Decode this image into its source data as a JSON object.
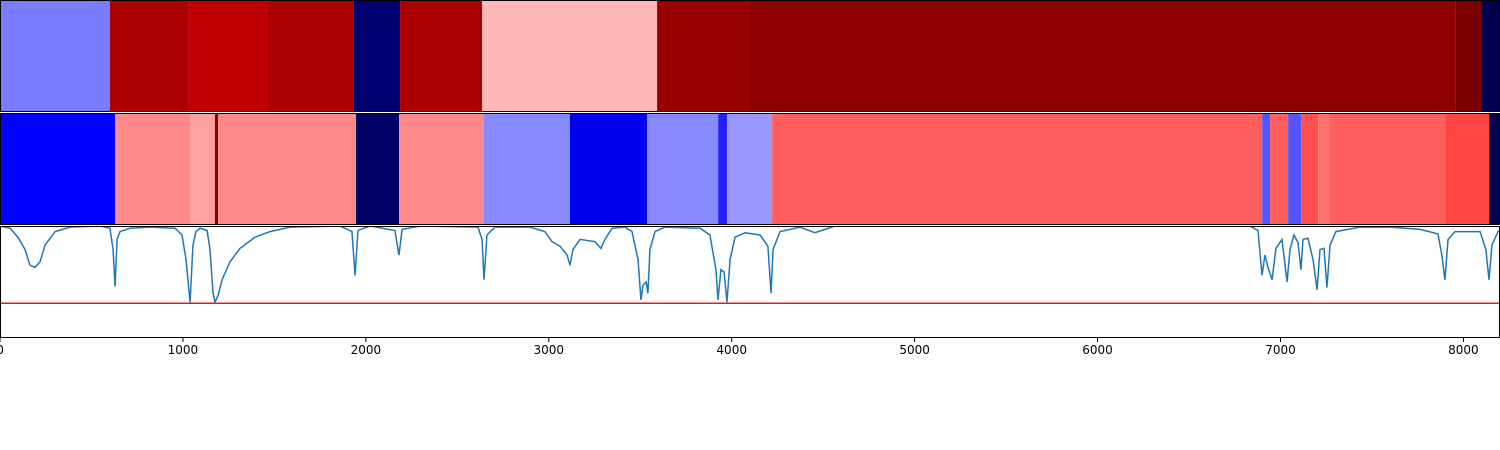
{
  "chart_data": [
    {
      "type": "segments",
      "xlim": [
        0,
        8200
      ],
      "x": [
        0,
        601,
        1028,
        1465,
        1935,
        2187,
        2635,
        3592,
        4100,
        7955,
        8097,
        8200
      ],
      "colors": [
        "#7b7bff",
        "#aa0000",
        "#c00000",
        "#aa0000",
        "#000070",
        "#aa0000",
        "#ffb8b8",
        "#990000",
        "#8e0000",
        "#7a0000",
        "#000050"
      ]
    },
    {
      "type": "segments",
      "xlim": [
        0,
        8200
      ],
      "x": [
        0,
        629,
        1039,
        1175,
        1192,
        1946,
        2182,
        2646,
        3116,
        3537,
        3926,
        3975,
        4221,
        6900,
        6943,
        7042,
        7113,
        7206,
        7266,
        7900,
        8141,
        8200
      ],
      "colors": [
        "#0000ff",
        "#ff8888",
        "#ffa0a0",
        "#880000",
        "#ff8888",
        "#000066",
        "#ff8888",
        "#8888ff",
        "#0000ee",
        "#8888ff",
        "#2222ff",
        "#9999ff",
        "#ff5e5e",
        "#5555ff",
        "#ff5e5e",
        "#5555ff",
        "#ff5050",
        "#ff7070",
        "#ff5e5e",
        "#ff4444",
        "#000050"
      ]
    },
    {
      "type": "line",
      "xlim": [
        0,
        8200
      ],
      "ylim": [
        0,
        1
      ],
      "xticks": [
        0,
        1000,
        2000,
        3000,
        4000,
        5000,
        6000,
        7000,
        8000
      ],
      "color": "#1f77b4",
      "threshold": 0.31,
      "threshold_color": "#e41a1c",
      "x": [
        0,
        55,
        98,
        137,
        164,
        191,
        219,
        246,
        301,
        383,
        547,
        601,
        618,
        629,
        640,
        656,
        711,
        820,
        957,
        995,
        1017,
        1039,
        1055,
        1071,
        1093,
        1132,
        1148,
        1164,
        1175,
        1192,
        1214,
        1257,
        1312,
        1394,
        1476,
        1585,
        1859,
        1924,
        1941,
        1957,
        2023,
        2159,
        2181,
        2198,
        2296,
        2613,
        2635,
        2646,
        2662,
        2706,
        2897,
        2979,
        3018,
        3061,
        3100,
        3116,
        3132,
        3171,
        3253,
        3285,
        3307,
        3346,
        3417,
        3455,
        3488,
        3504,
        3515,
        3532,
        3542,
        3553,
        3581,
        3635,
        3827,
        3881,
        3914,
        3925,
        3941,
        3958,
        3974,
        3991,
        4018,
        4073,
        4155,
        4198,
        4215,
        4226,
        4264,
        4373,
        4455,
        4510,
        4565,
        6833,
        6877,
        6899,
        6915,
        6932,
        6954,
        6975,
        7008,
        7036,
        7052,
        7074,
        7096,
        7112,
        7123,
        7150,
        7178,
        7200,
        7216,
        7238,
        7254,
        7271,
        7303,
        7435,
        7599,
        7763,
        7861,
        7883,
        7899,
        7916,
        7954,
        8091,
        8123,
        8140,
        8156,
        8189,
        8200
      ],
      "values": [
        1,
        0.98,
        0.9,
        0.79,
        0.65,
        0.63,
        0.68,
        0.83,
        0.95,
        0.99,
        1,
        0.98,
        0.79,
        0.46,
        0.88,
        0.95,
        0.98,
        0.99,
        0.98,
        0.92,
        0.7,
        0.32,
        0.83,
        0.95,
        0.98,
        0.96,
        0.79,
        0.41,
        0.32,
        0.38,
        0.52,
        0.68,
        0.8,
        0.9,
        0.95,
        0.99,
        1,
        0.95,
        0.56,
        0.96,
        1,
        0.96,
        0.74,
        0.97,
        1,
        0.99,
        0.88,
        0.52,
        0.92,
        0.99,
        0.99,
        0.95,
        0.86,
        0.82,
        0.74,
        0.65,
        0.79,
        0.88,
        0.86,
        0.8,
        0.88,
        0.98,
        0.99,
        0.95,
        0.7,
        0.34,
        0.47,
        0.5,
        0.4,
        0.79,
        0.95,
        0.99,
        0.98,
        0.92,
        0.61,
        0.34,
        0.61,
        0.59,
        0.32,
        0.7,
        0.9,
        0.94,
        0.92,
        0.82,
        0.4,
        0.79,
        0.95,
        0.99,
        0.94,
        0.97,
        1,
        1,
        0.96,
        0.56,
        0.74,
        0.63,
        0.52,
        0.8,
        0.88,
        0.5,
        0.79,
        0.92,
        0.85,
        0.61,
        0.88,
        0.89,
        0.7,
        0.43,
        0.79,
        0.8,
        0.45,
        0.83,
        0.95,
        0.99,
        0.99,
        0.97,
        0.93,
        0.73,
        0.52,
        0.88,
        0.95,
        0.95,
        0.79,
        0.52,
        0.83,
        0.95,
        0.96
      ]
    }
  ]
}
